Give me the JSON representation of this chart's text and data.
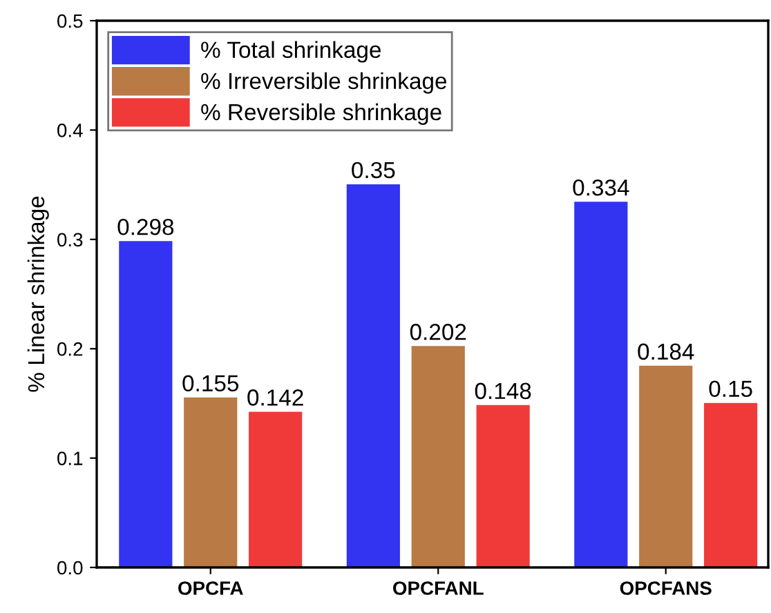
{
  "chart_data": {
    "type": "bar",
    "ylabel": "% Linear shrinkage",
    "categories": [
      "OPCFA",
      "OPCFANL",
      "OPCFANS"
    ],
    "series": [
      {
        "name": "% Total shrinkage",
        "color": "#3333f2",
        "values": [
          0.298,
          0.35,
          0.334
        ]
      },
      {
        "name": "% Irreversible shrinkage",
        "color": "#b97a45",
        "values": [
          0.155,
          0.202,
          0.184
        ]
      },
      {
        "name": "% Reversible shrinkage",
        "color": "#f03a3a",
        "values": [
          0.142,
          0.148,
          0.15
        ]
      }
    ],
    "ylim": [
      0,
      0.5
    ],
    "yticks": [
      {
        "value": 0,
        "label": "0.0"
      },
      0.1,
      0.2,
      0.3,
      0.4,
      0.5
    ],
    "data_labels": true,
    "legend": "top left",
    "grid": false
  }
}
